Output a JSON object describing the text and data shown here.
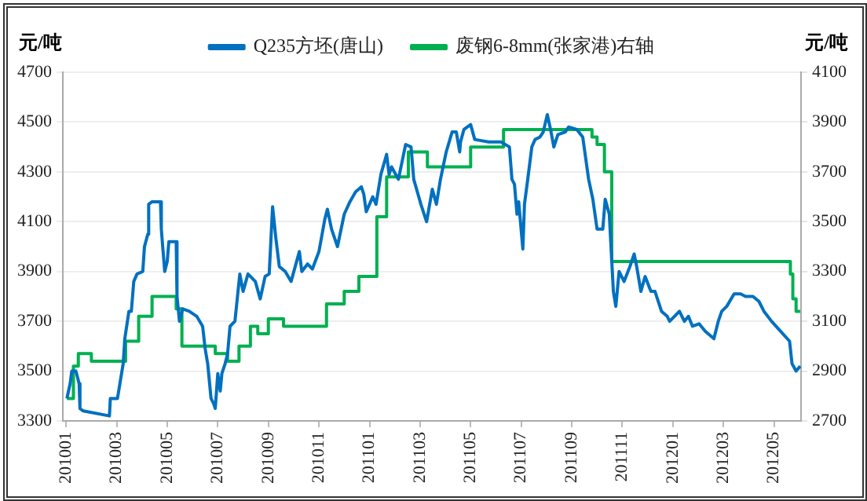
{
  "chart_data": {
    "type": "line",
    "ylabel": "元/吨",
    "y2label": "元/吨",
    "legend": "top",
    "grid": "y",
    "marker": "none",
    "xlim": [
      "2009-12-28",
      "2012-06-03"
    ],
    "xticks": [
      {
        "value": "2010-01",
        "label": "201001"
      },
      {
        "value": "2010-03",
        "label": "201003"
      },
      {
        "value": "2010-05",
        "label": "201005"
      },
      {
        "value": "2010-07",
        "label": "201007"
      },
      {
        "value": "2010-09",
        "label": "201009"
      },
      {
        "value": "2010-11",
        "label": "201011"
      },
      {
        "value": "2011-01",
        "label": "201101"
      },
      {
        "value": "2011-03",
        "label": "201103"
      },
      {
        "value": "2011-05",
        "label": "201105"
      },
      {
        "value": "2011-07",
        "label": "201107"
      },
      {
        "value": "2011-09",
        "label": "201109"
      },
      {
        "value": "2011-11",
        "label": "201111"
      },
      {
        "value": "2012-01",
        "label": "201201"
      },
      {
        "value": "2012-03",
        "label": "201203"
      },
      {
        "value": "2012-05",
        "label": "201205"
      }
    ],
    "ylim": [
      3300,
      4700
    ],
    "yticks": [
      3300,
      3500,
      3700,
      3900,
      4100,
      4300,
      4500,
      4700
    ],
    "y2lim": [
      2700,
      4100
    ],
    "y2ticks": [
      2700,
      2900,
      3100,
      3300,
      3500,
      3700,
      3900,
      4100
    ],
    "series": [
      {
        "name": "Q235方坯(唐山)",
        "color": "#0070c0",
        "x": [
          "2010-01-02",
          "2010-01-06",
          "2010-01-08",
          "2010-01-13",
          "2010-01-17",
          "2010-01-18",
          "2010-01-22",
          "2010-02-21",
          "2010-02-22",
          "2010-03-02",
          "2010-03-05",
          "2010-03-09",
          "2010-03-11",
          "2010-03-16",
          "2010-03-19",
          "2010-03-22",
          "2010-03-26",
          "2010-04-02",
          "2010-04-04",
          "2010-04-08",
          "2010-04-09",
          "2010-04-13",
          "2010-04-23",
          "2010-04-24",
          "2010-04-28",
          "2010-05-01",
          "2010-05-03",
          "2010-05-12",
          "2010-05-13",
          "2010-05-16",
          "2010-05-20",
          "2010-05-28",
          "2010-06-06",
          "2010-06-13",
          "2010-06-16",
          "2010-06-19",
          "2010-06-23",
          "2010-06-26",
          "2010-06-28",
          "2010-07-01",
          "2010-07-04",
          "2010-07-06",
          "2010-07-10",
          "2010-07-13",
          "2010-07-16",
          "2010-07-22",
          "2010-07-28",
          "2010-08-01",
          "2010-08-07",
          "2010-08-16",
          "2010-08-22",
          "2010-08-28",
          "2010-09-02",
          "2010-09-06",
          "2010-09-10",
          "2010-09-14",
          "2010-09-21",
          "2010-09-28",
          "2010-10-08",
          "2010-10-11",
          "2010-10-18",
          "2010-10-24",
          "2010-11-01",
          "2010-11-08",
          "2010-11-11",
          "2010-11-16",
          "2010-11-23",
          "2010-12-01",
          "2010-12-08",
          "2010-12-15",
          "2010-12-22",
          "2010-12-25",
          "2010-12-28",
          "2011-01-05",
          "2011-01-09",
          "2011-01-15",
          "2011-01-22",
          "2011-01-25",
          "2011-01-28",
          "2011-02-05",
          "2011-02-13",
          "2011-02-19",
          "2011-02-22",
          "2011-03-02",
          "2011-03-09",
          "2011-03-16",
          "2011-03-21",
          "2011-03-26",
          "2011-04-02",
          "2011-04-09",
          "2011-04-14",
          "2011-04-18",
          "2011-04-19",
          "2011-04-23",
          "2011-05-01",
          "2011-05-06",
          "2011-05-23",
          "2011-06-07",
          "2011-06-17",
          "2011-06-20",
          "2011-06-23",
          "2011-06-26",
          "2011-06-28",
          "2011-07-03",
          "2011-07-05",
          "2011-07-09",
          "2011-07-14",
          "2011-07-18",
          "2011-07-24",
          "2011-07-28",
          "2011-08-02",
          "2011-08-06",
          "2011-08-10",
          "2011-08-15",
          "2011-08-24",
          "2011-08-28",
          "2011-09-07",
          "2011-09-14",
          "2011-09-21",
          "2011-09-26",
          "2011-10-01",
          "2011-10-08",
          "2011-10-11",
          "2011-10-16",
          "2011-10-21",
          "2011-10-24",
          "2011-10-28",
          "2011-11-03",
          "2011-11-10",
          "2011-11-15",
          "2011-11-18",
          "2011-11-23",
          "2011-11-28",
          "2011-12-05",
          "2011-12-10",
          "2011-12-18",
          "2011-12-25",
          "2011-12-28",
          "2012-01-09",
          "2012-01-15",
          "2012-01-20",
          "2012-01-25",
          "2012-02-02",
          "2012-02-09",
          "2012-02-19",
          "2012-02-24",
          "2012-02-28",
          "2012-03-05",
          "2012-03-14",
          "2012-03-22",
          "2012-03-28",
          "2012-04-06",
          "2012-04-13",
          "2012-04-19",
          "2012-04-28",
          "2012-05-09",
          "2012-05-20",
          "2012-05-23",
          "2012-05-28",
          "2012-06-02"
        ],
        "values": [
          3390,
          3450,
          3500,
          3500,
          3450,
          3350,
          3340,
          3320,
          3390,
          3390,
          3450,
          3530,
          3630,
          3740,
          3740,
          3860,
          3890,
          3900,
          4000,
          4050,
          4170,
          4180,
          4180,
          4070,
          3900,
          3940,
          4020,
          4020,
          3800,
          3700,
          3750,
          3740,
          3720,
          3680,
          3590,
          3530,
          3390,
          3370,
          3350,
          3490,
          3420,
          3490,
          3530,
          3570,
          3680,
          3700,
          3890,
          3820,
          3890,
          3860,
          3790,
          3880,
          3890,
          4160,
          4030,
          3920,
          3900,
          3860,
          3980,
          3900,
          3930,
          3910,
          3980,
          4110,
          4150,
          4070,
          4000,
          4130,
          4180,
          4220,
          4240,
          4210,
          4140,
          4200,
          4170,
          4290,
          4370,
          4290,
          4320,
          4270,
          4410,
          4400,
          4270,
          4170,
          4100,
          4230,
          4170,
          4270,
          4380,
          4460,
          4460,
          4380,
          4420,
          4470,
          4490,
          4430,
          4420,
          4420,
          4400,
          4270,
          4250,
          4130,
          4180,
          3990,
          4170,
          4270,
          4400,
          4430,
          4440,
          4460,
          4530,
          4470,
          4400,
          4450,
          4460,
          4480,
          4470,
          4440,
          4270,
          4190,
          4070,
          4070,
          4190,
          4130,
          3820,
          3760,
          3900,
          3860,
          3920,
          3970,
          3920,
          3820,
          3880,
          3820,
          3820,
          3740,
          3720,
          3700,
          3740,
          3700,
          3720,
          3680,
          3690,
          3660,
          3630,
          3700,
          3740,
          3760,
          3810,
          3810,
          3800,
          3800,
          3780,
          3740,
          3700,
          3660,
          3620,
          3530,
          3500,
          3520
        ]
      },
      {
        "name": "废钢6-8mm(张家港)右轴",
        "color": "#00b050",
        "type": "step",
        "axis": "y2",
        "x": [
          "2010-01-02",
          "2010-01-10",
          "2010-01-16",
          "2010-02-01",
          "2010-03-12",
          "2010-03-28",
          "2010-04-13",
          "2010-05-12",
          "2010-05-19",
          "2010-06-28",
          "2010-07-13",
          "2010-07-27",
          "2010-08-10",
          "2010-08-19",
          "2010-09-01",
          "2010-09-19",
          "2010-11-10",
          "2010-12-01",
          "2010-12-19",
          "2011-01-10",
          "2011-01-22",
          "2011-02-16",
          "2011-03-10",
          "2011-05-01",
          "2011-06-10",
          "2011-09-25",
          "2011-10-01",
          "2011-10-10",
          "2011-10-19",
          "2012-05-21",
          "2012-05-24",
          "2012-05-28",
          "2012-06-02"
        ],
        "values": [
          2790,
          2920,
          2970,
          2940,
          3020,
          3120,
          3200,
          3150,
          3000,
          2970,
          2940,
          3000,
          3080,
          3050,
          3110,
          3080,
          3170,
          3220,
          3280,
          3520,
          3680,
          3780,
          3720,
          3800,
          3870,
          3840,
          3810,
          3700,
          3340,
          3290,
          3190,
          3140,
          3140
        ]
      }
    ]
  }
}
